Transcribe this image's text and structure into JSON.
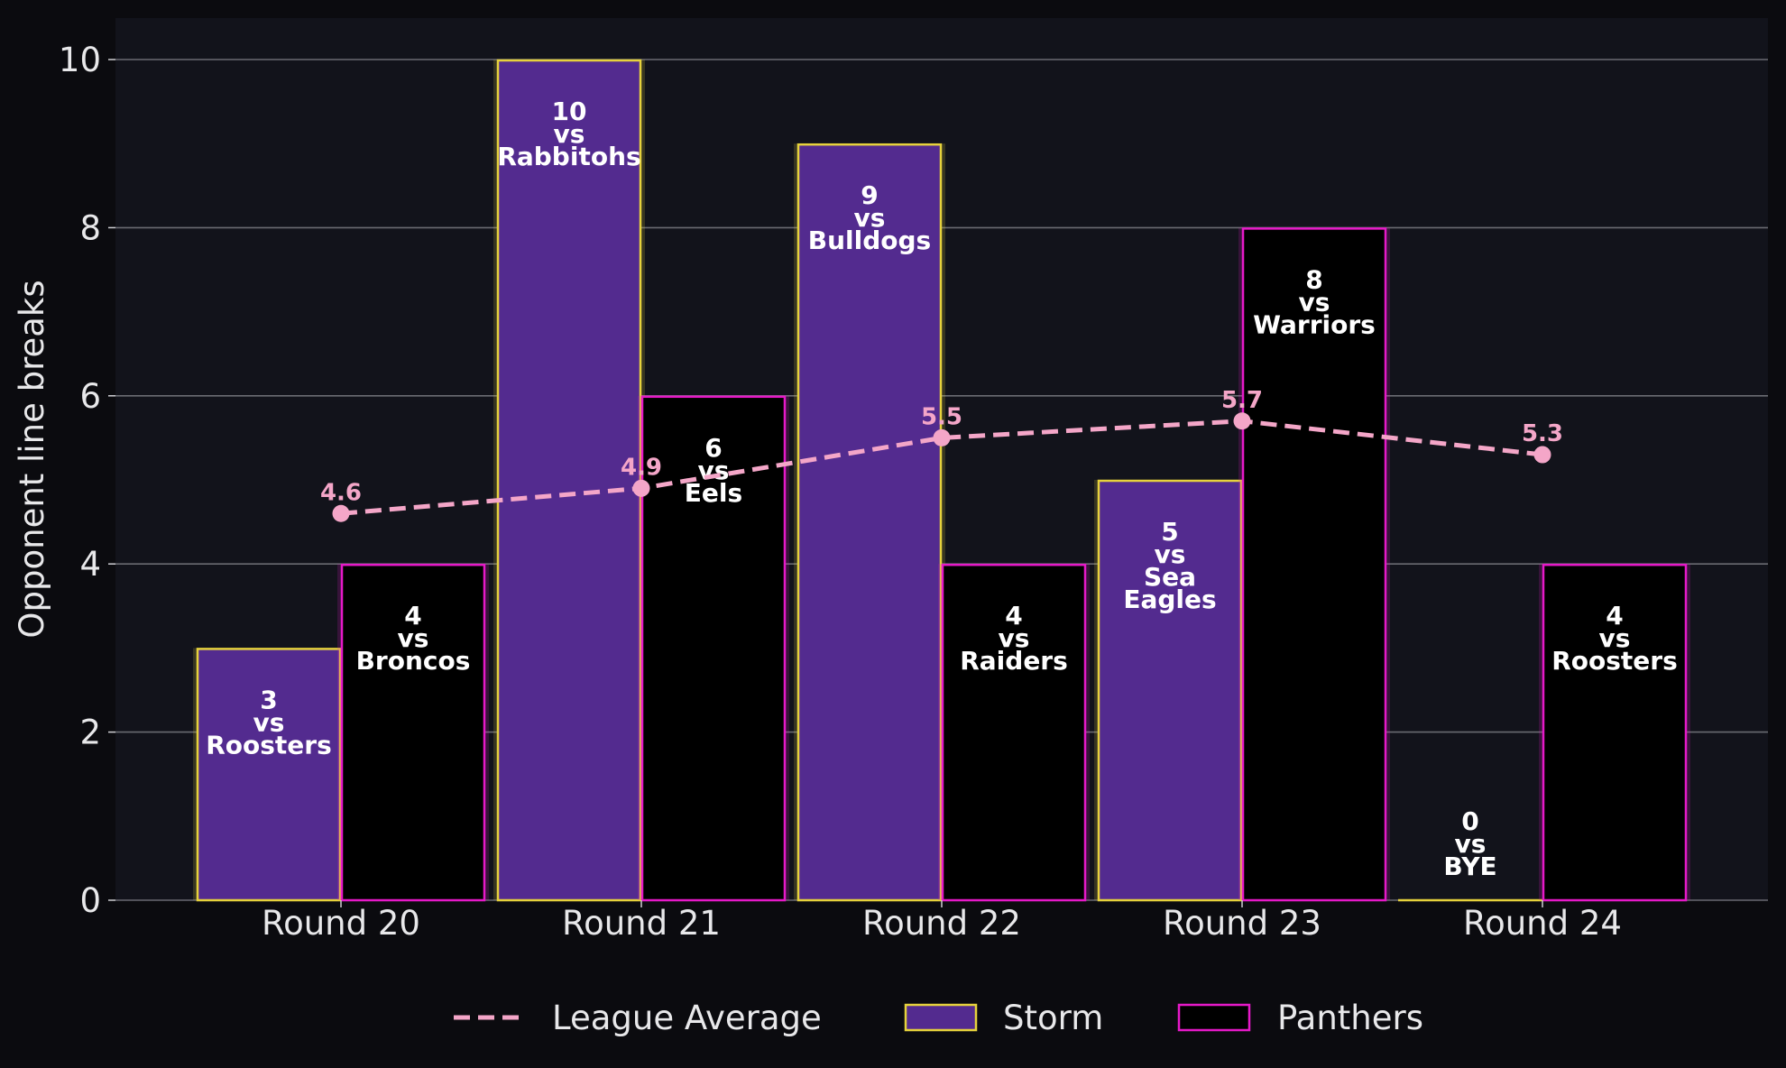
{
  "chart_data": {
    "type": "bar",
    "ylabel": "Opponent line breaks",
    "categories": [
      "Round 20",
      "Round 21",
      "Round 22",
      "Round 23",
      "Round 24"
    ],
    "ylim": [
      0,
      10.5
    ],
    "yticks": [
      "0",
      "2",
      "4",
      "6",
      "8",
      "10"
    ],
    "grid": true,
    "legend_placement": "bottom-center",
    "series": [
      {
        "name": "Storm",
        "values": [
          3,
          10,
          9,
          5,
          0
        ],
        "labels": [
          [
            "3",
            "vs",
            "Roosters"
          ],
          [
            "10",
            "vs",
            "Rabbitohs"
          ],
          [
            "9",
            "vs",
            "Bulldogs"
          ],
          [
            "5",
            "vs",
            "Sea",
            "Eagles"
          ],
          [
            "0",
            "vs",
            "BYE"
          ]
        ],
        "fill": "#532b8f",
        "edge": "#e6d23c"
      },
      {
        "name": "Panthers",
        "values": [
          4,
          6,
          4,
          8,
          4
        ],
        "labels": [
          [
            "4",
            "vs",
            "Broncos"
          ],
          [
            "6",
            "vs",
            "Eels"
          ],
          [
            "4",
            "vs",
            "Raiders"
          ],
          [
            "8",
            "vs",
            "Warriors"
          ],
          [
            "4",
            "vs",
            "Roosters"
          ]
        ],
        "fill": "#000000",
        "edge": "#e619c8"
      }
    ],
    "league_average": {
      "name": "League Average",
      "values": [
        4.6,
        4.9,
        5.5,
        5.7,
        5.3
      ],
      "labels": [
        "4.6",
        "4.9",
        "5.5",
        "5.7",
        "5.3"
      ],
      "color": "#f4a6c8"
    }
  }
}
